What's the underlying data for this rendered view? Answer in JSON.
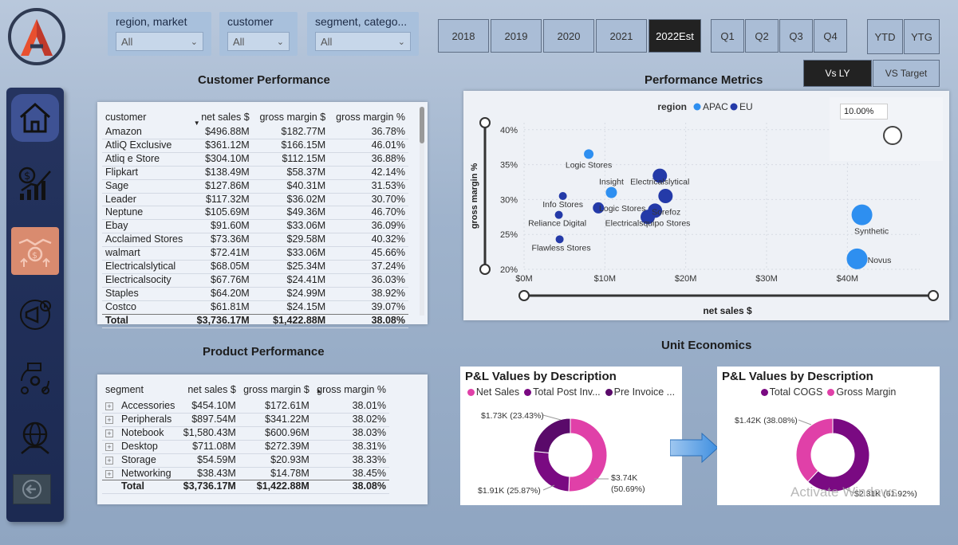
{
  "slicers": [
    {
      "title": "region, market",
      "value": "All"
    },
    {
      "title": "customer",
      "value": "All"
    },
    {
      "title": "segment, catego...",
      "value": "All"
    }
  ],
  "years": [
    "2018",
    "2019",
    "2020",
    "2021",
    "2022Est"
  ],
  "selected_year": "2022Est",
  "quarters": [
    "Q1",
    "Q2",
    "Q3",
    "Q4"
  ],
  "ytd": "YTD",
  "ytg": "YTG",
  "vs_ly": "Vs LY",
  "vs_target": "VS Target",
  "customer_performance": {
    "title": "Customer Performance",
    "headers": [
      "customer",
      "net sales $",
      "gross margin $",
      "gross margin %"
    ],
    "rows": [
      [
        "Amazon",
        "$496.88M",
        "$182.77M",
        "36.78%"
      ],
      [
        "AtliQ Exclusive",
        "$361.12M",
        "$166.15M",
        "46.01%"
      ],
      [
        "Atliq e Store",
        "$304.10M",
        "$112.15M",
        "36.88%"
      ],
      [
        "Flipkart",
        "$138.49M",
        "$58.37M",
        "42.14%"
      ],
      [
        "Sage",
        "$127.86M",
        "$40.31M",
        "31.53%"
      ],
      [
        "Leader",
        "$117.32M",
        "$36.02M",
        "30.70%"
      ],
      [
        "Neptune",
        "$105.69M",
        "$49.36M",
        "46.70%"
      ],
      [
        "Ebay",
        "$91.60M",
        "$33.06M",
        "36.09%"
      ],
      [
        "Acclaimed Stores",
        "$73.36M",
        "$29.58M",
        "40.32%"
      ],
      [
        "walmart",
        "$72.41M",
        "$33.06M",
        "45.66%"
      ],
      [
        "Electricalslytical",
        "$68.05M",
        "$25.34M",
        "37.24%"
      ],
      [
        "Electricalsocity",
        "$67.76M",
        "$24.41M",
        "36.03%"
      ],
      [
        "Staples",
        "$64.20M",
        "$24.99M",
        "38.92%"
      ],
      [
        "Costco",
        "$61.81M",
        "$24.15M",
        "39.07%"
      ]
    ],
    "total": [
      "Total",
      "$3,736.17M",
      "$1,422.88M",
      "38.08%"
    ]
  },
  "product_performance": {
    "title": "Product Performance",
    "headers": [
      "segment",
      "net sales $",
      "gross margin $",
      "gross margin %"
    ],
    "rows": [
      [
        "Accessories",
        "$454.10M",
        "$172.61M",
        "38.01%"
      ],
      [
        "Peripherals",
        "$897.54M",
        "$341.22M",
        "38.02%"
      ],
      [
        "Notebook",
        "$1,580.43M",
        "$600.96M",
        "38.03%"
      ],
      [
        "Desktop",
        "$711.08M",
        "$272.39M",
        "38.31%"
      ],
      [
        "Storage",
        "$54.59M",
        "$20.93M",
        "38.33%"
      ],
      [
        "Networking",
        "$38.43M",
        "$14.78M",
        "38.45%"
      ]
    ],
    "total": [
      "Total",
      "$3,736.17M",
      "$1,422.88M",
      "38.08%"
    ]
  },
  "performance_metrics": {
    "title": "Performance Metrics",
    "legend_title": "region",
    "legend": [
      {
        "name": "APAC",
        "color": "#2e8ff0"
      },
      {
        "name": "EU",
        "color": "#243aa8"
      }
    ],
    "slider_value": "10.00%",
    "chart_data": {
      "type": "scatter",
      "xlabel": "net sales $",
      "ylabel": "gross margin %",
      "x_ticks": [
        "$0M",
        "$10M",
        "$20M",
        "$30M",
        "$40M"
      ],
      "y_ticks": [
        "40%",
        "35%",
        "30%",
        "25%",
        "20%"
      ],
      "xlim": [
        0,
        45
      ],
      "ylim": [
        20,
        41
      ],
      "points": [
        {
          "x": 8,
          "y": 36.5,
          "r": 6,
          "series": "APAC",
          "label": "Logic Stores"
        },
        {
          "x": 10.8,
          "y": 31,
          "r": 7,
          "series": "APAC",
          "label": "Insight"
        },
        {
          "x": 4.8,
          "y": 30.5,
          "r": 5,
          "series": "EU",
          "label": "Info Stores"
        },
        {
          "x": 4.3,
          "y": 27.8,
          "r": 5,
          "series": "EU",
          "label": "Reliance Digital"
        },
        {
          "x": 4.4,
          "y": 24.3,
          "r": 5,
          "series": "EU",
          "label": "Flawless Stores"
        },
        {
          "x": 9.2,
          "y": 28.8,
          "r": 7,
          "series": "EU",
          "label": "Logic Stores"
        },
        {
          "x": 16.8,
          "y": 33.4,
          "r": 9,
          "series": "EU",
          "label": "Electricalslytical"
        },
        {
          "x": 17.5,
          "y": 30.5,
          "r": 9,
          "series": "EU",
          "label": ""
        },
        {
          "x": 16.2,
          "y": 28.4,
          "r": 9,
          "series": "EU",
          "label": "Sorefoz"
        },
        {
          "x": 15.3,
          "y": 27.5,
          "r": 9,
          "series": "EU",
          "label": "Electricalsquipo Stores"
        },
        {
          "x": 41.8,
          "y": 27.8,
          "r": 13,
          "series": "APAC",
          "label": "Synthetic"
        },
        {
          "x": 41.2,
          "y": 21.5,
          "r": 13,
          "series": "APAC",
          "label": "Novus"
        }
      ]
    }
  },
  "unit_economics": {
    "title": "Unit Economics",
    "left": {
      "title": "P&L Values by Description",
      "legend": [
        {
          "name": "Net Sales",
          "color": "#e040a8"
        },
        {
          "name": "Total Post Inv...",
          "color": "#7a0a82"
        },
        {
          "name": "Pre Invoice ...",
          "color": "#5a0a6a"
        }
      ],
      "chart_data": {
        "type": "pie",
        "slices": [
          {
            "name": "Net Sales",
            "value": 50.69,
            "label": "$3.74K (50.69%)",
            "color": "#e040a8"
          },
          {
            "name": "Total Post Inv...",
            "value": 25.87,
            "label": "$1.91K (25.87%)",
            "color": "#7a0a82"
          },
          {
            "name": "Pre Invoice ...",
            "value": 23.43,
            "label": "$1.73K (23.43%)",
            "color": "#5a0a6a"
          }
        ]
      }
    },
    "right": {
      "title": "P&L Values by Description",
      "legend": [
        {
          "name": "Total COGS",
          "color": "#7a0a82"
        },
        {
          "name": "Gross Margin",
          "color": "#e040a8"
        }
      ],
      "chart_data": {
        "type": "pie",
        "slices": [
          {
            "name": "Total COGS",
            "value": 61.92,
            "label": "$2.31K (61.92%)",
            "color": "#7a0a82"
          },
          {
            "name": "Gross Margin",
            "value": 38.08,
            "label": "$1.42K (38.08%)",
            "color": "#e040a8"
          }
        ]
      }
    }
  },
  "watermark": "Activate Windows"
}
